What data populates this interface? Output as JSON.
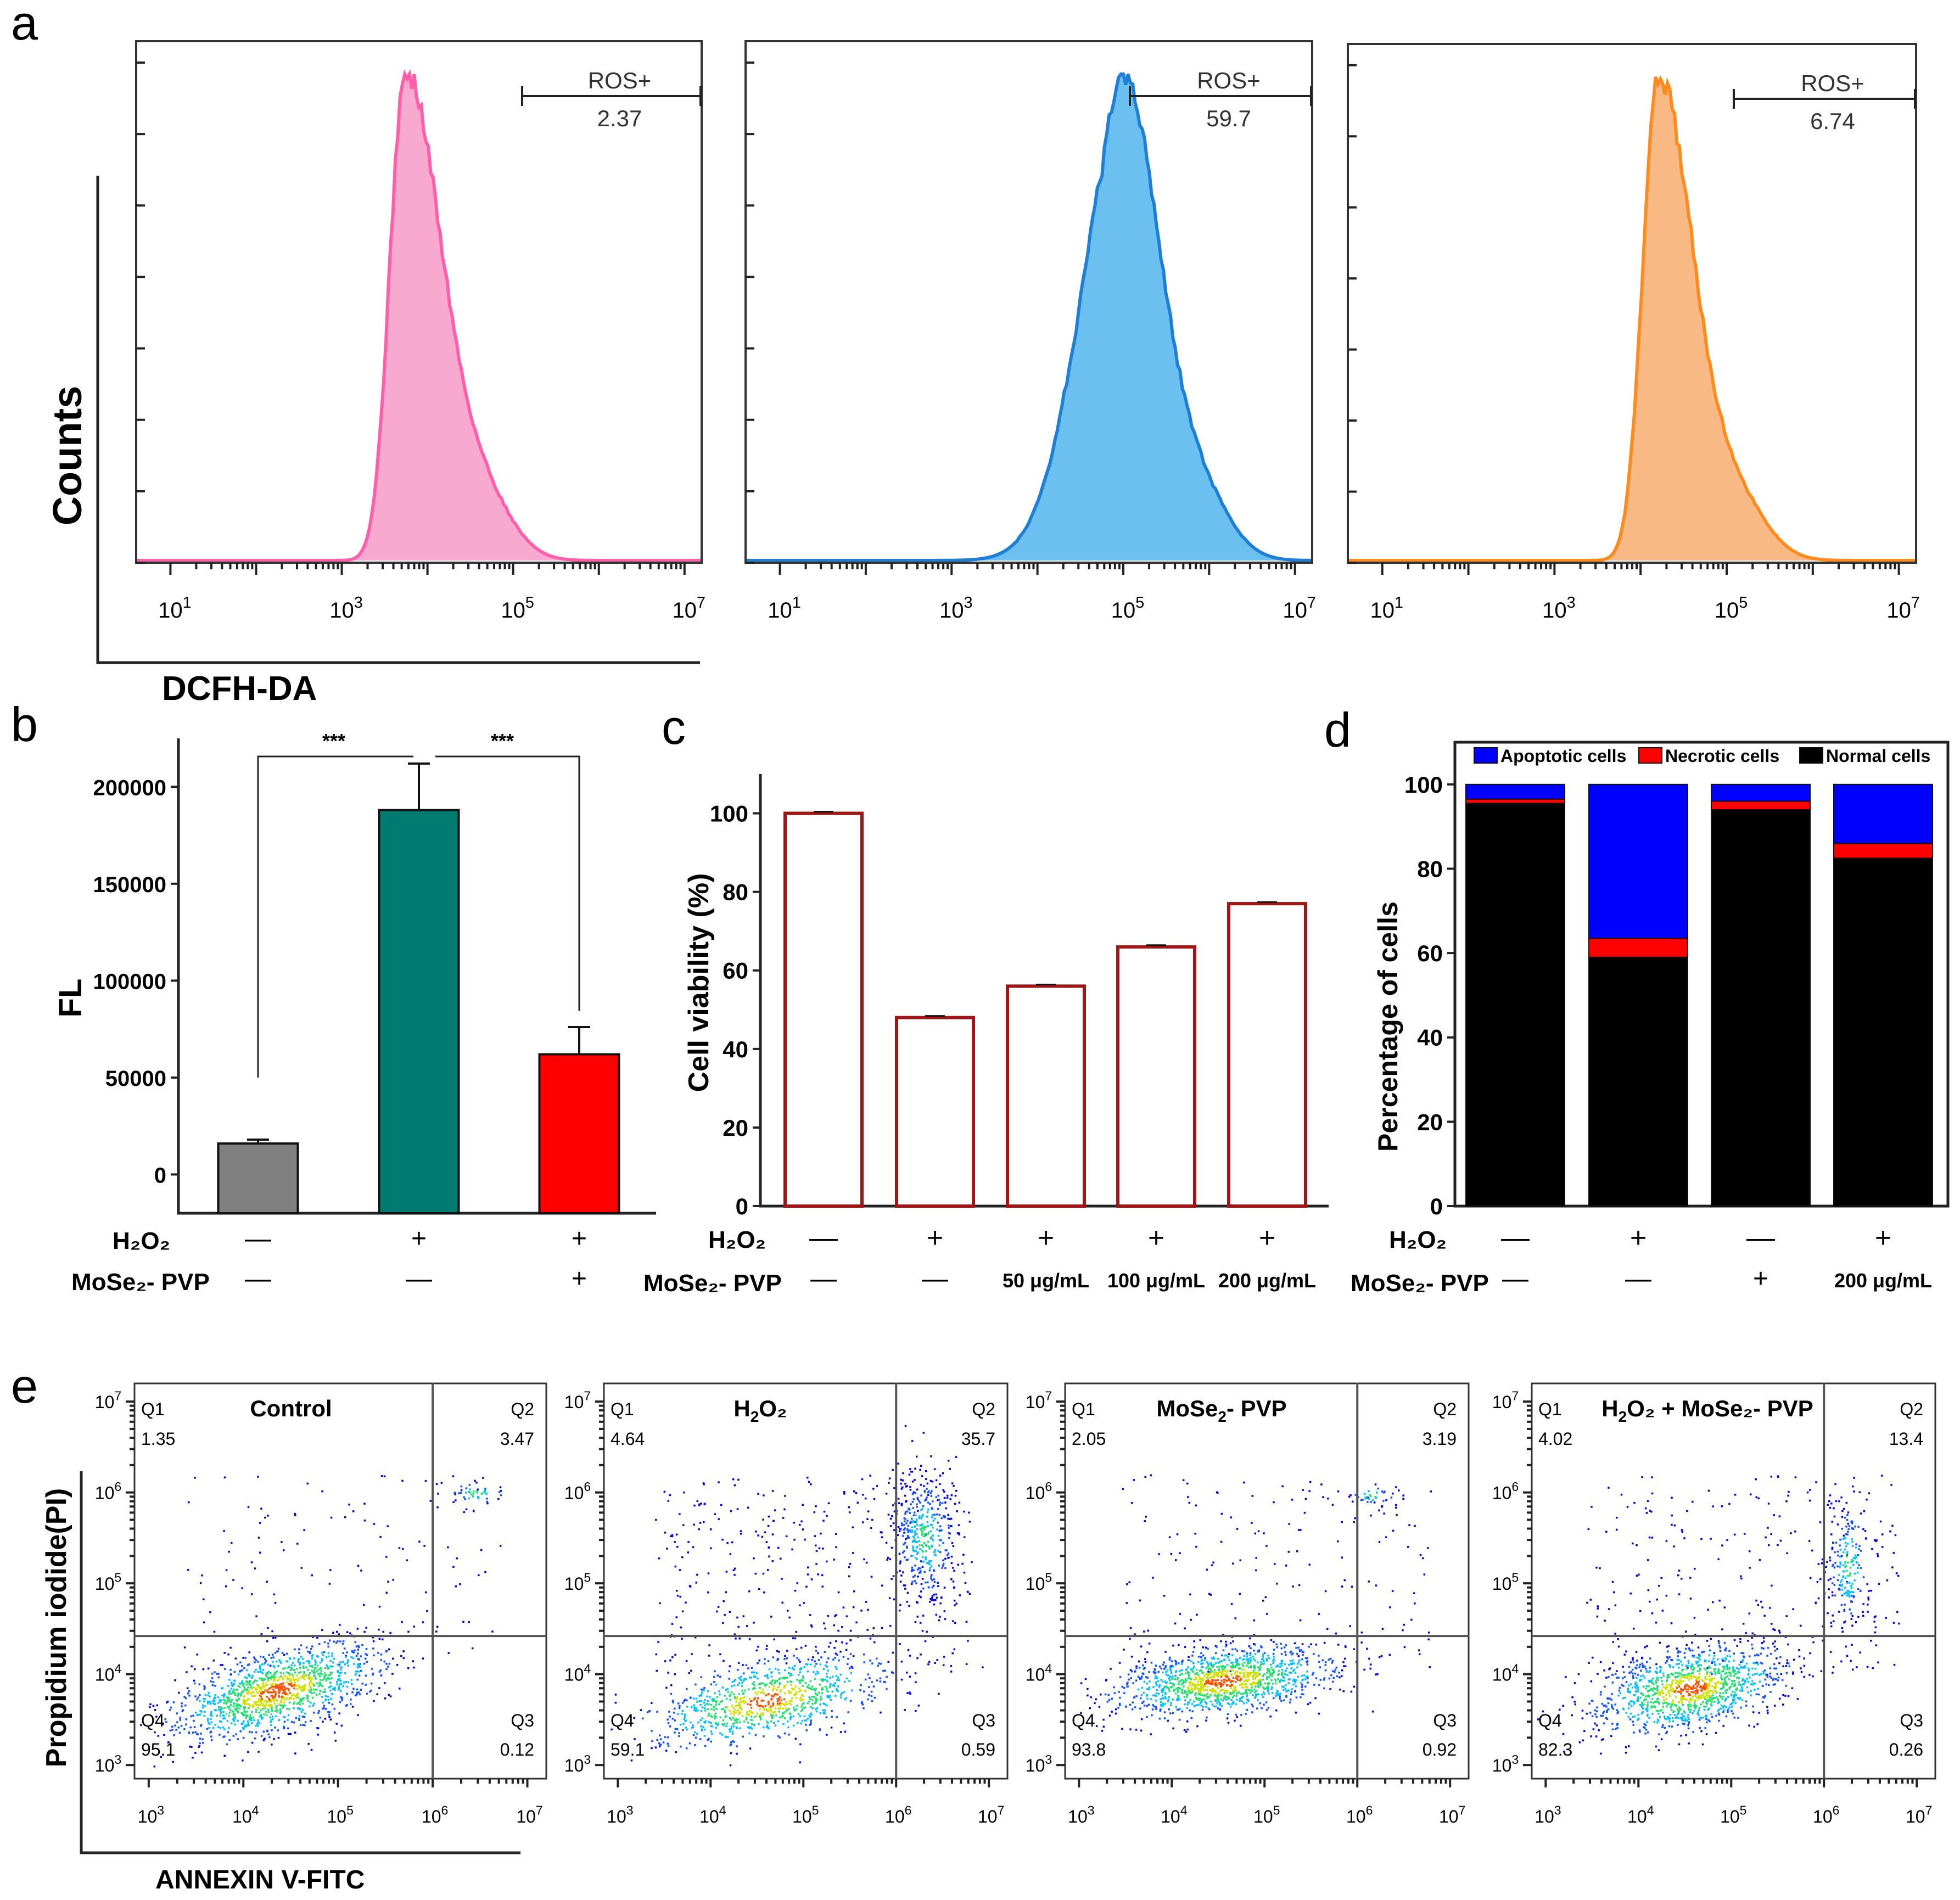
{
  "colors": {
    "pink": "#ff5fa8",
    "pink_fill": "#f7a9cf",
    "blue": "#1f7fd6",
    "blue_fill": "#6cc0ef",
    "orange": "#ff8a1e",
    "orange_fill": "#f9b985",
    "gray_bar": "#808080",
    "teal_bar": "#007b72",
    "red_bar": "#ff0000",
    "dark_red_outline": "#a01515",
    "apoptotic": "#0000ff",
    "necrotic": "#ff0000",
    "normal": "#000000"
  },
  "panels": {
    "a": {
      "letter": "a",
      "ylabel": "Counts",
      "xlabel": "DCFH-DA",
      "gate_label": "ROS+",
      "xtick_exponents": [
        "1",
        "3",
        "5",
        "7"
      ],
      "chart_data": {
        "type": "area",
        "xscale": "log",
        "xlim": [
          1,
          10000000
        ],
        "histograms": [
          {
            "gate_value": "2.37",
            "peak_x": 5500,
            "color": "pink"
          },
          {
            "gate_value": "59.7",
            "peak_x": 100000,
            "color": "blue"
          },
          {
            "gate_value": "6.74",
            "peak_x": 16000,
            "color": "orange"
          }
        ]
      }
    },
    "b": {
      "letter": "b",
      "ylabel": "FL",
      "sig": [
        "***",
        "***"
      ],
      "row1_label": "H₂O₂",
      "row2_label": "MoSe₂- PVP",
      "row1": [
        "—",
        "+",
        "+"
      ],
      "row2": [
        "—",
        "—",
        "+"
      ],
      "chart_data": {
        "type": "bar",
        "categories": [
          "1",
          "2",
          "3"
        ],
        "values": [
          16000,
          188000,
          62000
        ],
        "errors": [
          2000,
          24000,
          14000
        ],
        "ylim": [
          -20000,
          225000
        ],
        "yticks": [
          "0",
          "50000",
          "100000",
          "150000",
          "200000"
        ],
        "ytick_values": [
          0,
          50000,
          100000,
          150000,
          200000
        ]
      }
    },
    "c": {
      "letter": "c",
      "ylabel": "Cell viability (%)",
      "row1_label": "H₂O₂",
      "row2_label": "MoSe₂- PVP",
      "row1": [
        "—",
        "+",
        "+",
        "+",
        "+"
      ],
      "row2": [
        "—",
        "—",
        "50 μg/mL",
        "100 μg/mL",
        "200 μg/mL"
      ],
      "chart_data": {
        "type": "bar",
        "categories": [
          "1",
          "2",
          "3",
          "4",
          "5"
        ],
        "values": [
          100,
          48,
          56,
          66,
          77
        ],
        "ylim": [
          0,
          110
        ],
        "yticks": [
          "0",
          "20",
          "40",
          "60",
          "80",
          "100"
        ],
        "ytick_values": [
          0,
          20,
          40,
          60,
          80,
          100
        ]
      }
    },
    "d": {
      "letter": "d",
      "ylabel": "Percentage of cells",
      "row1_label": "H₂O₂",
      "row2_label": "MoSe₂- PVP",
      "row1": [
        "—",
        "+",
        "—",
        "+"
      ],
      "row2": [
        "—",
        "—",
        "+",
        "200 μg/mL"
      ],
      "legend": [
        "Apoptotic cells",
        "Necrotic cells",
        "Normal cells"
      ],
      "chart_data": {
        "type": "bar",
        "stacked": true,
        "categories": [
          "1",
          "2",
          "3",
          "4"
        ],
        "series": [
          {
            "name": "Normal cells",
            "values": [
              95.5,
              59,
              94,
              82.5
            ]
          },
          {
            "name": "Necrotic cells",
            "values": [
              1.0,
              4.5,
              2.0,
              3.5
            ]
          },
          {
            "name": "Apoptotic cells",
            "values": [
              3.5,
              36.5,
              4.0,
              14.0
            ]
          }
        ],
        "ylim": [
          0,
          110
        ],
        "yticks": [
          "0",
          "20",
          "40",
          "60",
          "80",
          "100"
        ],
        "ytick_values": [
          0,
          20,
          40,
          60,
          80,
          100
        ]
      }
    },
    "e": {
      "letter": "e",
      "ylabel": "Propidium iodide(PI)",
      "xlabel": "ANNEXIN V-FITC",
      "xtick_exponents": [
        "3",
        "4",
        "5",
        "6",
        "7"
      ],
      "ytick_exponents": [
        "3",
        "4",
        "5",
        "6",
        "7"
      ],
      "quadrant_labels": [
        "Q1",
        "Q2",
        "Q3",
        "Q4"
      ],
      "chart_data": {
        "type": "scatter",
        "xscale": "log",
        "yscale": "log",
        "xlim": [
          1000,
          10000000
        ],
        "ylim": [
          1000,
          10000000
        ],
        "plots": [
          {
            "title_main": "Control",
            "title_sub": "",
            "title_tail": "",
            "q1": "1.35",
            "q2": "3.47",
            "q3": "0.12",
            "q4": "95.1"
          },
          {
            "title_main": "H",
            "title_sub": "2",
            "title_tail": "O₂",
            "q1": "4.64",
            "q2": "35.7",
            "q3": "0.59",
            "q4": "59.1"
          },
          {
            "title_main": "MoSe",
            "title_sub": "2",
            "title_tail": "- PVP",
            "q1": "2.05",
            "q2": "3.19",
            "q3": "0.92",
            "q4": "93.8"
          },
          {
            "title_main": "H",
            "title_sub": "2",
            "title_tail": "O₂ + MoSe₂- PVP",
            "q1": "4.02",
            "q2": "13.4",
            "q3": "0.26",
            "q4": "82.3"
          }
        ]
      }
    }
  }
}
